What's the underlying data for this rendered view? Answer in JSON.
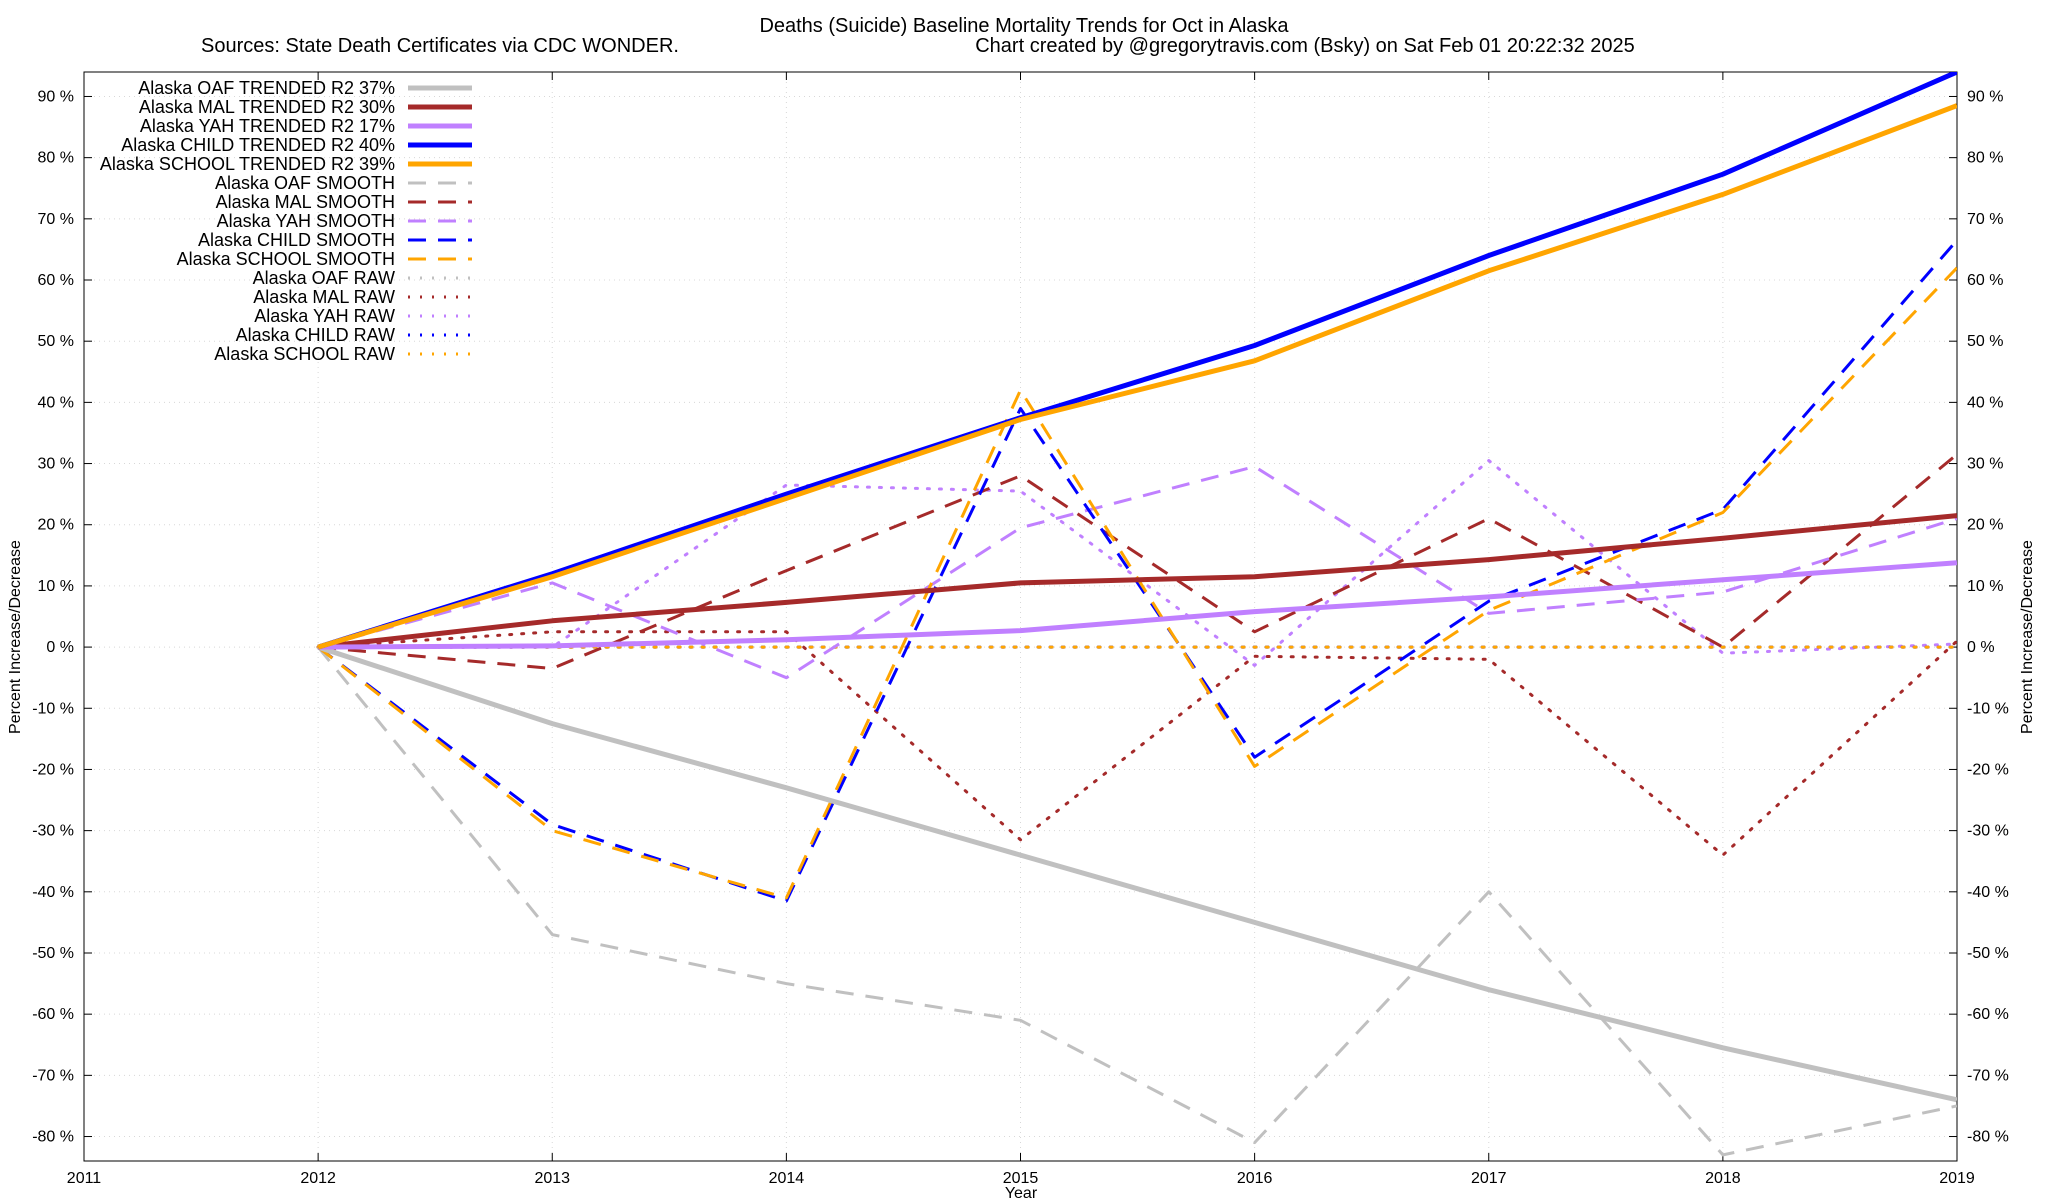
{
  "chart_data": {
    "type": "line",
    "title": "Deaths (Suicide)  Baseline Mortality Trends for Oct in Alaska",
    "subtitle_left": "Sources: State Death Certificates via CDC WONDER.",
    "subtitle_right": "Chart created by @gregorytravis.com (Bsky) on Sat Feb 01 20:22:32 2025",
    "xlabel": "Year",
    "ylabel_left": "Percent Increase/Decrease",
    "ylabel_right": "Percent Increase/Decrease",
    "xlim": [
      2011,
      2019
    ],
    "ylim": [
      -84,
      94
    ],
    "x_ticks": [
      "2011",
      "2012",
      "2013",
      "2014",
      "2015",
      "2016",
      "2017",
      "2018",
      "2019"
    ],
    "y_ticks": [
      90,
      80,
      70,
      60,
      50,
      40,
      30,
      20,
      10,
      0,
      -10,
      -20,
      -30,
      -40,
      -50,
      -60,
      -70,
      -80
    ],
    "y_tick_labels": [
      "90 %",
      "80 %",
      "70 %",
      "60 %",
      "50 %",
      "40 %",
      "30 %",
      "20 %",
      "10 %",
      "0 %",
      "-10 %",
      "-20 %",
      "-30 %",
      "-40 %",
      "-50 %",
      "-60 %",
      "-70 %",
      "-80 %"
    ],
    "grid": true,
    "legend_position": "top-left",
    "series": [
      {
        "name": "Alaska OAF TRENDED R2  37%",
        "style": "solid",
        "color": "#c0c0c0",
        "x": [
          2012,
          2013,
          2014,
          2015,
          2016,
          2017,
          2018,
          2019
        ],
        "values": [
          0,
          -12.5,
          -23,
          -34,
          -45,
          -56,
          -65.5,
          -74
        ]
      },
      {
        "name": "Alaska MAL TRENDED R2  30%",
        "style": "solid",
        "color": "#a52a2a",
        "x": [
          2012,
          2013,
          2014,
          2015,
          2016,
          2017,
          2018,
          2019
        ],
        "values": [
          0,
          4.3,
          7.3,
          10.5,
          11.5,
          14.3,
          17.8,
          21.5
        ]
      },
      {
        "name": "Alaska YAH TRENDED R2  17%",
        "style": "solid",
        "color": "#c080ff",
        "x": [
          2012,
          2013,
          2014,
          2015,
          2016,
          2017,
          2018,
          2019
        ],
        "values": [
          0,
          0.2,
          1.2,
          2.7,
          5.8,
          8.2,
          11,
          13.8
        ]
      },
      {
        "name": "Alaska CHILD TRENDED R2  40%",
        "style": "solid",
        "color": "#0000ff",
        "x": [
          2012,
          2013,
          2014,
          2015,
          2016,
          2017,
          2018,
          2019
        ],
        "values": [
          0,
          12,
          25,
          37.5,
          49.3,
          64,
          77.3,
          94
        ]
      },
      {
        "name": "Alaska SCHOOL TRENDED R2  39%",
        "style": "solid",
        "color": "#ffa500",
        "x": [
          2012,
          2013,
          2014,
          2015,
          2016,
          2017,
          2018,
          2019
        ],
        "values": [
          0,
          11.5,
          24.3,
          37.2,
          46.8,
          61.5,
          74,
          88.5
        ]
      },
      {
        "name": "Alaska OAF SMOOTH",
        "style": "dashed",
        "color": "#c0c0c0",
        "x": [
          2012,
          2013,
          2014,
          2015,
          2016,
          2017,
          2018,
          2019
        ],
        "values": [
          0,
          -47,
          -55,
          -61,
          -81,
          -40,
          -83,
          -75
        ]
      },
      {
        "name": "Alaska MAL SMOOTH",
        "style": "dashed",
        "color": "#a52a2a",
        "x": [
          2012,
          2013,
          2014,
          2015,
          2016,
          2017,
          2018,
          2019
        ],
        "values": [
          0,
          -3.5,
          12.5,
          28,
          2.5,
          21,
          0,
          31.5
        ]
      },
      {
        "name": "Alaska YAH SMOOTH",
        "style": "dashed",
        "color": "#c080ff",
        "x": [
          2012,
          2013,
          2014,
          2015,
          2016,
          2017,
          2018,
          2019
        ],
        "values": [
          0,
          10.5,
          -5,
          19.5,
          29.5,
          5.5,
          9,
          21
        ]
      },
      {
        "name": "Alaska CHILD SMOOTH",
        "style": "dashed",
        "color": "#0000ff",
        "x": [
          2012,
          2013,
          2014,
          2015,
          2016,
          2017,
          2018,
          2019
        ],
        "values": [
          0,
          -29,
          -41.5,
          39,
          -18,
          7.5,
          22.5,
          66.5
        ]
      },
      {
        "name": "Alaska SCHOOL SMOOTH",
        "style": "dashed",
        "color": "#ffa500",
        "x": [
          2012,
          2013,
          2014,
          2015,
          2016,
          2017,
          2018,
          2019
        ],
        "values": [
          0,
          -30,
          -41,
          42,
          -19.5,
          6,
          22,
          62
        ]
      },
      {
        "name": "Alaska OAF RAW",
        "style": "dotted",
        "color": "#c0c0c0",
        "x": [
          2012,
          2013,
          2014,
          2015,
          2016,
          2017,
          2018,
          2019
        ],
        "values": [
          0,
          0,
          0,
          0,
          0,
          0,
          0,
          0
        ]
      },
      {
        "name": "Alaska MAL RAW",
        "style": "dotted",
        "color": "#a52a2a",
        "x": [
          2012,
          2013,
          2014,
          2015,
          2016,
          2017,
          2018,
          2019
        ],
        "values": [
          0,
          2.5,
          2.5,
          -31.5,
          -1.5,
          -2,
          -34,
          1
        ]
      },
      {
        "name": "Alaska YAH RAW",
        "style": "dotted",
        "color": "#c080ff",
        "x": [
          2012,
          2013,
          2014,
          2015,
          2016,
          2017,
          2018,
          2019
        ],
        "values": [
          0,
          0,
          26.5,
          25.5,
          -3,
          30.5,
          -1,
          0.5
        ]
      },
      {
        "name": "Alaska CHILD RAW",
        "style": "dotted",
        "color": "#0000ff",
        "x": [
          2012,
          2013,
          2014,
          2015,
          2016,
          2017,
          2018,
          2019
        ],
        "values": [
          0,
          0,
          0,
          0,
          0,
          0,
          0,
          0
        ]
      },
      {
        "name": "Alaska SCHOOL RAW",
        "style": "dotted",
        "color": "#ffa500",
        "x": [
          2012,
          2013,
          2014,
          2015,
          2016,
          2017,
          2018,
          2019
        ],
        "values": [
          0,
          0,
          0,
          0,
          0,
          0,
          0,
          0
        ]
      }
    ]
  }
}
